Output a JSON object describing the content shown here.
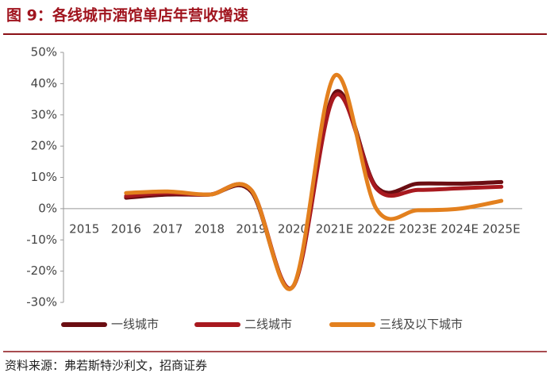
{
  "chart_data": {
    "type": "line",
    "title": "图 9：各线城市酒馆单店年营收增速",
    "source": "资料来源：弗若斯特沙利文，招商证券",
    "categories": [
      "2015",
      "2016",
      "2017",
      "2018",
      "2019",
      "2020",
      "2021E",
      "2022E",
      "2023E",
      "2024E",
      "2025E"
    ],
    "series": [
      {
        "name": "一线城市",
        "color": "#6b0d12",
        "values": [
          null,
          3.5,
          4.5,
          4.5,
          5.5,
          -25,
          37,
          7,
          8,
          8,
          8.5
        ]
      },
      {
        "name": "二线城市",
        "color": "#a8191f",
        "values": [
          null,
          4,
          5,
          4.5,
          6,
          -25,
          36,
          6.5,
          6,
          6.5,
          7
        ]
      },
      {
        "name": "三线及以下城市",
        "color": "#e3801e",
        "values": [
          null,
          5,
          5.5,
          4.5,
          6,
          -25,
          42.5,
          0,
          -0.5,
          0,
          2.5
        ]
      }
    ],
    "ylim": [
      -30,
      50
    ],
    "yticks": [
      {
        "value": -30,
        "label": "-30%"
      },
      {
        "value": -20,
        "label": "-20%"
      },
      {
        "value": -10,
        "label": "-10%"
      },
      {
        "value": 0,
        "label": "0%"
      },
      {
        "value": 10,
        "label": "10%"
      },
      {
        "value": 20,
        "label": "20%"
      },
      {
        "value": 30,
        "label": "30%"
      },
      {
        "value": 40,
        "label": "40%"
      },
      {
        "value": 50,
        "label": "50%"
      }
    ],
    "grid": false,
    "legend": "bottom"
  }
}
